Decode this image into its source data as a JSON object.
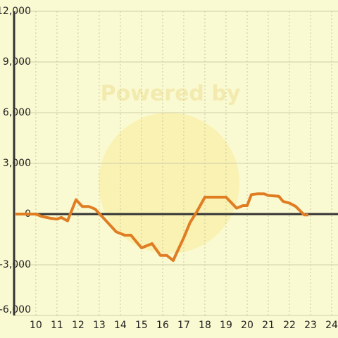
{
  "chart_data": {
    "type": "line",
    "watermark": "Powered by",
    "x": [
      9.0,
      10.0,
      10.3,
      10.7,
      11.0,
      11.2,
      11.5,
      11.9,
      12.2,
      12.5,
      12.8,
      13.1,
      13.4,
      13.8,
      14.2,
      14.5,
      15.0,
      15.5,
      15.9,
      16.2,
      16.5,
      16.7,
      17.0,
      17.3,
      17.6,
      18.0,
      18.5,
      19.0,
      19.5,
      19.8,
      20.0,
      20.2,
      20.5,
      20.8,
      21.0,
      21.5,
      21.7,
      22.0,
      22.3,
      22.7,
      22.9
    ],
    "series": [
      {
        "color": "#e07d22",
        "values": [
          0,
          0,
          -150,
          -250,
          -300,
          -200,
          -400,
          850,
          450,
          450,
          300,
          -100,
          -500,
          -1050,
          -1250,
          -1250,
          -2000,
          -1750,
          -2450,
          -2450,
          -2750,
          -2200,
          -1400,
          -500,
          100,
          1000,
          1000,
          1000,
          350,
          500,
          500,
          1150,
          1200,
          1200,
          1100,
          1050,
          750,
          650,
          450,
          -50,
          -50
        ]
      }
    ],
    "xlim": [
      8.97,
      24.3
    ],
    "xticks": [
      10,
      11,
      12,
      13,
      14,
      15,
      16,
      17,
      18,
      19,
      20,
      21,
      22,
      23,
      24
    ],
    "ylim": [
      -6000,
      12000
    ],
    "yticks": [
      {
        "value": -6000,
        "label": "-6,000"
      },
      {
        "value": -3000,
        "label": "-3,000"
      },
      0,
      {
        "value": 3000,
        "label": "3,000"
      },
      {
        "value": 6000,
        "label": "6,000"
      },
      {
        "value": 9000,
        "label": "9,000"
      },
      {
        "value": 12000,
        "label": "12,000"
      }
    ],
    "grid": true
  }
}
